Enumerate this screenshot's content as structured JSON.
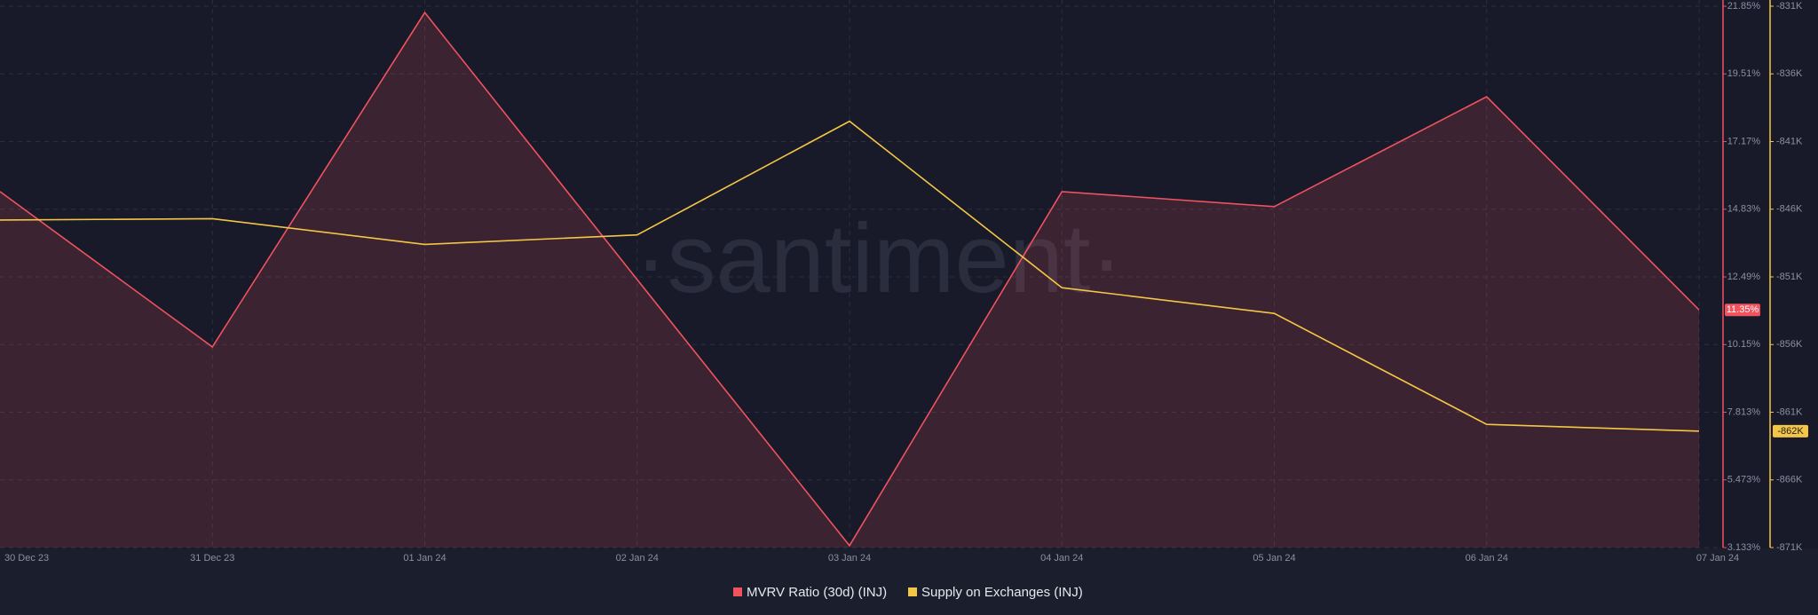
{
  "chart_data": {
    "type": "line",
    "watermark": "·santiment·",
    "categories": [
      "30 Dec 23",
      "31 Dec 23",
      "01 Jan 24",
      "02 Jan 24",
      "03 Jan 24",
      "04 Jan 24",
      "05 Jan 24",
      "06 Jan 24",
      "07 Jan 24"
    ],
    "series": [
      {
        "name": "MVRV Ratio (30d) (INJ)",
        "color": "#f0525e",
        "fill": true,
        "values": [
          15.44,
          10.07,
          21.63,
          12.4,
          3.2,
          15.44,
          14.92,
          18.72,
          11.35
        ],
        "value_labels": [
          null,
          null,
          null,
          null,
          null,
          null,
          null,
          null,
          "11.35%"
        ]
      },
      {
        "name": "Supply on Exchanges (INJ)",
        "color": "#f5c645",
        "axis": "y2",
        "values": [
          -846800,
          -846700,
          -848600,
          -847900,
          -839500,
          -851800,
          -853700,
          -861900,
          -862400
        ],
        "value_labels": [
          null,
          null,
          null,
          null,
          null,
          null,
          null,
          null,
          "-862K"
        ]
      }
    ],
    "ylim": [
      3.133,
      21.85
    ],
    "yticks": [
      {
        "value": 21.85,
        "label": "21.85%"
      },
      {
        "value": 19.51,
        "label": "19.51%"
      },
      {
        "value": 17.17,
        "label": "17.17%"
      },
      {
        "value": 14.83,
        "label": "14.83%"
      },
      {
        "value": 12.49,
        "label": "12.49%"
      },
      {
        "value": 10.15,
        "label": "10.15%"
      },
      {
        "value": 7.813,
        "label": "7.813%"
      },
      {
        "value": 5.473,
        "label": "5.473%"
      },
      {
        "value": 3.133,
        "label": "3.133%"
      }
    ],
    "y2lim": [
      -871000,
      -831000
    ],
    "y2ticks": [
      {
        "value": -831000,
        "label": "-831K"
      },
      {
        "value": -836000,
        "label": "-836K"
      },
      {
        "value": -841000,
        "label": "-841K"
      },
      {
        "value": -846000,
        "label": "-846K"
      },
      {
        "value": -851000,
        "label": "-851K"
      },
      {
        "value": -856000,
        "label": "-856K"
      },
      {
        "value": -861000,
        "label": "-861K"
      },
      {
        "value": -866000,
        "label": "-866K"
      },
      {
        "value": -871000,
        "label": "-871K"
      }
    ],
    "grid": true
  }
}
